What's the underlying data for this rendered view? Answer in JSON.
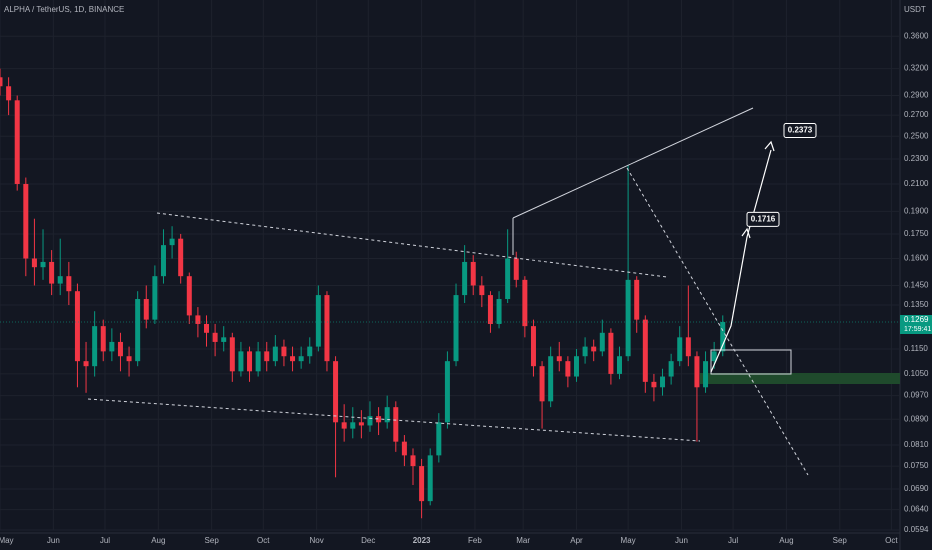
{
  "chart_data": {
    "type": "candlestick",
    "title": "ALPHA / TetherUS, 1D, BINANCE",
    "y_axis_label": "USDT",
    "log_scale": true,
    "grid": true,
    "up_color": "#089981",
    "down_color": "#f23645",
    "x": [
      0,
      5,
      10,
      15,
      20,
      25,
      30,
      35,
      40,
      45,
      50,
      55,
      60,
      65,
      70,
      75,
      80,
      85,
      90,
      95,
      100,
      105,
      110,
      115,
      120,
      125,
      130,
      135,
      140,
      145,
      150,
      155,
      160,
      165,
      170,
      175,
      180,
      185,
      190,
      195,
      200,
      205,
      210,
      215,
      220,
      225,
      230,
      235,
      240,
      245,
      250,
      255,
      260,
      265,
      270,
      275,
      280,
      285,
      290,
      295,
      300,
      305,
      310,
      315,
      320,
      325,
      330,
      335,
      340,
      345,
      350,
      355,
      360,
      365,
      370,
      375,
      380,
      385,
      390,
      395,
      400,
      405,
      410,
      415,
      420
    ],
    "open": [
      0.31,
      0.3,
      0.285,
      0.21,
      0.16,
      0.155,
      0.158,
      0.146,
      0.15,
      0.142,
      0.11,
      0.108,
      0.125,
      0.114,
      0.118,
      0.112,
      0.11,
      0.138,
      0.128,
      0.15,
      0.168,
      0.172,
      0.15,
      0.13,
      0.126,
      0.122,
      0.118,
      0.12,
      0.106,
      0.114,
      0.106,
      0.114,
      0.11,
      0.116,
      0.112,
      0.11,
      0.112,
      0.116,
      0.14,
      0.11,
      0.088,
      0.086,
      0.088,
      0.087,
      0.09,
      0.088,
      0.093,
      0.082,
      0.078,
      0.075,
      0.066,
      0.078,
      0.088,
      0.11,
      0.14,
      0.158,
      0.145,
      0.14,
      0.126,
      0.138,
      0.16,
      0.148,
      0.125,
      0.108,
      0.095,
      0.112,
      0.11,
      0.104,
      0.112,
      0.116,
      0.114,
      0.122,
      0.105,
      0.112,
      0.148,
      0.128,
      0.102,
      0.1,
      0.104,
      0.11,
      0.12,
      0.112,
      0.1,
      0.11,
      0.114
    ],
    "high": [
      0.32,
      0.31,
      0.29,
      0.215,
      0.185,
      0.178,
      0.165,
      0.172,
      0.158,
      0.146,
      0.118,
      0.132,
      0.128,
      0.124,
      0.122,
      0.116,
      0.142,
      0.145,
      0.156,
      0.178,
      0.18,
      0.175,
      0.152,
      0.134,
      0.13,
      0.126,
      0.125,
      0.122,
      0.118,
      0.116,
      0.118,
      0.118,
      0.121,
      0.119,
      0.116,
      0.116,
      0.12,
      0.145,
      0.142,
      0.112,
      0.094,
      0.093,
      0.092,
      0.095,
      0.093,
      0.097,
      0.095,
      0.084,
      0.08,
      0.077,
      0.08,
      0.091,
      0.114,
      0.146,
      0.168,
      0.162,
      0.15,
      0.142,
      0.142,
      0.178,
      0.164,
      0.15,
      0.128,
      0.11,
      0.116,
      0.118,
      0.112,
      0.115,
      0.12,
      0.119,
      0.128,
      0.124,
      0.116,
      0.225,
      0.15,
      0.13,
      0.105,
      0.107,
      0.113,
      0.125,
      0.145,
      0.114,
      0.114,
      0.118,
      0.13
    ],
    "low": [
      0.29,
      0.27,
      0.205,
      0.15,
      0.145,
      0.148,
      0.14,
      0.14,
      0.135,
      0.1,
      0.098,
      0.104,
      0.11,
      0.11,
      0.106,
      0.104,
      0.108,
      0.124,
      0.126,
      0.146,
      0.16,
      0.146,
      0.126,
      0.12,
      0.116,
      0.112,
      0.114,
      0.102,
      0.104,
      0.102,
      0.104,
      0.106,
      0.108,
      0.108,
      0.106,
      0.107,
      0.109,
      0.114,
      0.106,
      0.072,
      0.082,
      0.083,
      0.083,
      0.085,
      0.084,
      0.086,
      0.079,
      0.075,
      0.07,
      0.062,
      0.065,
      0.076,
      0.086,
      0.108,
      0.136,
      0.14,
      0.134,
      0.122,
      0.124,
      0.136,
      0.144,
      0.12,
      0.104,
      0.086,
      0.093,
      0.106,
      0.1,
      0.102,
      0.109,
      0.11,
      0.112,
      0.101,
      0.103,
      0.11,
      0.122,
      0.098,
      0.095,
      0.097,
      0.101,
      0.108,
      0.108,
      0.082,
      0.098,
      0.107,
      0.112
    ],
    "close": [
      0.3,
      0.285,
      0.21,
      0.16,
      0.155,
      0.158,
      0.146,
      0.15,
      0.142,
      0.11,
      0.108,
      0.125,
      0.114,
      0.118,
      0.112,
      0.11,
      0.138,
      0.128,
      0.15,
      0.168,
      0.172,
      0.15,
      0.13,
      0.126,
      0.122,
      0.118,
      0.12,
      0.106,
      0.114,
      0.106,
      0.114,
      0.11,
      0.116,
      0.112,
      0.11,
      0.112,
      0.116,
      0.14,
      0.11,
      0.088,
      0.086,
      0.088,
      0.087,
      0.09,
      0.088,
      0.093,
      0.082,
      0.078,
      0.075,
      0.066,
      0.078,
      0.088,
      0.11,
      0.14,
      0.158,
      0.145,
      0.14,
      0.126,
      0.138,
      0.16,
      0.148,
      0.125,
      0.108,
      0.095,
      0.112,
      0.11,
      0.104,
      0.112,
      0.116,
      0.114,
      0.122,
      0.105,
      0.112,
      0.148,
      0.128,
      0.102,
      0.1,
      0.104,
      0.11,
      0.12,
      0.112,
      0.1,
      0.11,
      0.114,
      0.1269
    ],
    "xlim": [
      0,
      523
    ],
    "xticks": [
      {
        "value": 0,
        "label": "May"
      },
      {
        "value": 31,
        "label": "Jun"
      },
      {
        "value": 61,
        "label": "Jul"
      },
      {
        "value": 92,
        "label": "Aug"
      },
      {
        "value": 123,
        "label": "Sep"
      },
      {
        "value": 153,
        "label": "Oct"
      },
      {
        "value": 184,
        "label": "Nov"
      },
      {
        "value": 214,
        "label": "Dec"
      },
      {
        "value": 245,
        "label": "2023"
      },
      {
        "value": 276,
        "label": "Feb"
      },
      {
        "value": 304,
        "label": "Mar"
      },
      {
        "value": 335,
        "label": "Apr"
      },
      {
        "value": 365,
        "label": "May"
      },
      {
        "value": 396,
        "label": "Jun"
      },
      {
        "value": 426,
        "label": "Jul"
      },
      {
        "value": 457,
        "label": "Aug"
      },
      {
        "value": 488,
        "label": "Sep"
      },
      {
        "value": 518,
        "label": "Oct"
      }
    ],
    "ylim": [
      0.0594,
      0.411
    ],
    "yticks": [
      {
        "value": 0.36,
        "label": "0.3600"
      },
      {
        "value": 0.32,
        "label": "0.3200"
      },
      {
        "value": 0.29,
        "label": "0.2900"
      },
      {
        "value": 0.27,
        "label": "0.2700"
      },
      {
        "value": 0.25,
        "label": "0.2500"
      },
      {
        "value": 0.23,
        "label": "0.2300"
      },
      {
        "value": 0.21,
        "label": "0.2100"
      },
      {
        "value": 0.19,
        "label": "0.1900"
      },
      {
        "value": 0.175,
        "label": "0.1750"
      },
      {
        "value": 0.16,
        "label": "0.1600"
      },
      {
        "value": 0.145,
        "label": "0.1450"
      },
      {
        "value": 0.135,
        "label": "0.1350"
      },
      {
        "value": 0.115,
        "label": "0.1150"
      },
      {
        "value": 0.105,
        "label": "0.1050"
      },
      {
        "value": 0.097,
        "label": "0.0970"
      },
      {
        "value": 0.089,
        "label": "0.0890"
      },
      {
        "value": 0.081,
        "label": "0.0810"
      },
      {
        "value": 0.075,
        "label": "0.0750"
      },
      {
        "value": 0.069,
        "label": "0.0690"
      },
      {
        "value": 0.064,
        "label": "0.0640"
      },
      {
        "value": 0.0594,
        "label": "0.0594"
      }
    ],
    "last_price": {
      "value": 0.1269,
      "label": "0.1269"
    },
    "countdown": "17:59:41",
    "annotations": [
      {
        "value": 0.2373,
        "label": "0.2373"
      },
      {
        "value": 0.1716,
        "label": "0.1716"
      }
    ]
  }
}
